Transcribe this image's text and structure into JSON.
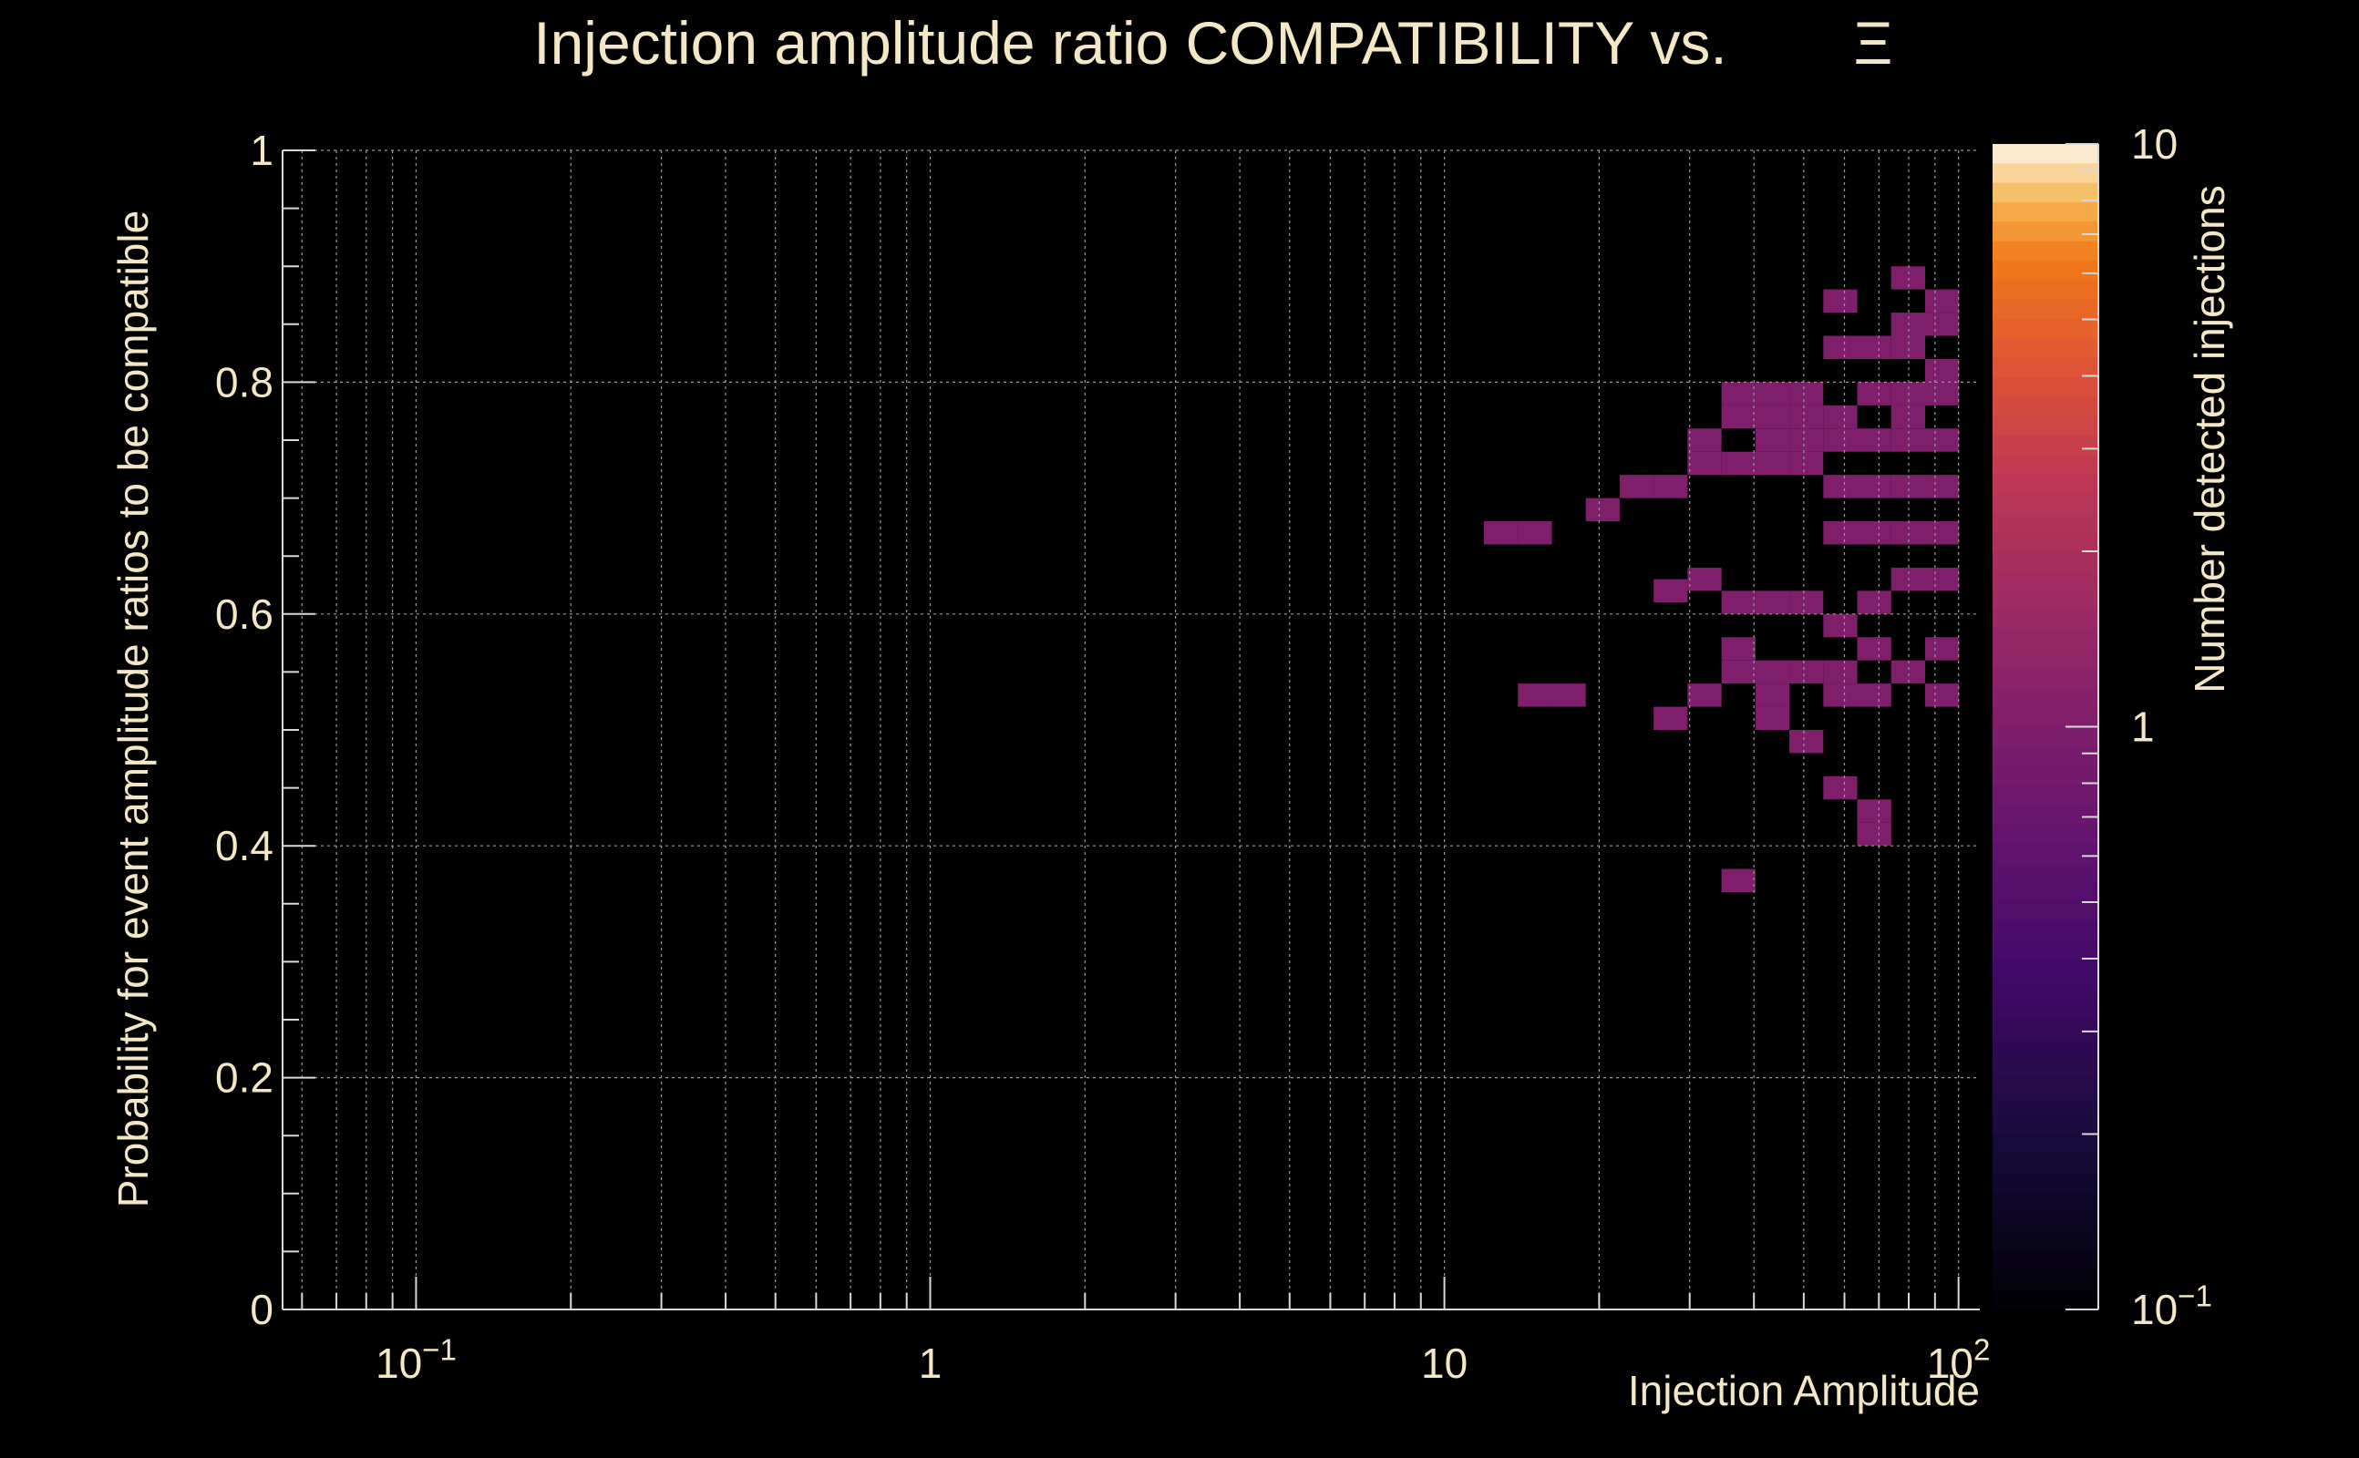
{
  "chart_data": {
    "type": "heatmap",
    "title": "Injection amplitude ratio COMPATIBILITY vs.",
    "title_symbol": "Ξ",
    "xlabel": "Injection Amplitude",
    "ylabel": "Probability for event amplitude ratios to be compatible",
    "zlabel": "Number detected injections",
    "x_scale": "log",
    "x_range": [
      0.055,
      110
    ],
    "y_range": [
      0,
      1
    ],
    "z_scale": "log",
    "z_range": [
      0.1,
      10
    ],
    "x_ticks": [
      {
        "value": 0.1,
        "mantissa": "10",
        "exponent": "−1"
      },
      {
        "value": 1,
        "mantissa": "1",
        "exponent": ""
      },
      {
        "value": 10,
        "mantissa": "10",
        "exponent": ""
      },
      {
        "value": 100,
        "mantissa": "10",
        "exponent": "2"
      }
    ],
    "y_ticks": [
      {
        "value": 0,
        "label": "0"
      },
      {
        "value": 0.2,
        "label": "0.2"
      },
      {
        "value": 0.4,
        "label": "0.4"
      },
      {
        "value": 0.6,
        "label": "0.6"
      },
      {
        "value": 0.8,
        "label": "0.8"
      },
      {
        "value": 1,
        "label": "1"
      }
    ],
    "z_ticks": [
      {
        "value": 10,
        "mantissa": "10",
        "exponent": ""
      },
      {
        "value": 1,
        "mantissa": "1",
        "exponent": ""
      },
      {
        "value": 0.1,
        "mantissa": "10",
        "exponent": "−1"
      }
    ],
    "grid": true,
    "bins": {
      "x_bins": 50,
      "y_bins": 50,
      "x_log_min": -1.26,
      "x_log_max": 2.04,
      "cells": [
        [
          1.11,
          0.67,
          1
        ],
        [
          1.176,
          0.67,
          1
        ],
        [
          1.176,
          0.53,
          1
        ],
        [
          1.242,
          0.53,
          1
        ],
        [
          1.308,
          0.69,
          1
        ],
        [
          1.374,
          0.71,
          1
        ],
        [
          1.44,
          0.71,
          1
        ],
        [
          1.44,
          0.62,
          1
        ],
        [
          1.44,
          0.51,
          1
        ],
        [
          1.506,
          0.75,
          1
        ],
        [
          1.506,
          0.73,
          1
        ],
        [
          1.506,
          0.63,
          1
        ],
        [
          1.506,
          0.53,
          1
        ],
        [
          1.572,
          0.79,
          1
        ],
        [
          1.572,
          0.77,
          1
        ],
        [
          1.572,
          0.73,
          1
        ],
        [
          1.572,
          0.61,
          1
        ],
        [
          1.572,
          0.57,
          1
        ],
        [
          1.572,
          0.55,
          1
        ],
        [
          1.572,
          0.37,
          1
        ],
        [
          1.638,
          0.79,
          1
        ],
        [
          1.638,
          0.77,
          1
        ],
        [
          1.638,
          0.75,
          1
        ],
        [
          1.638,
          0.73,
          1
        ],
        [
          1.638,
          0.61,
          1
        ],
        [
          1.638,
          0.55,
          1
        ],
        [
          1.638,
          0.53,
          1
        ],
        [
          1.638,
          0.51,
          1
        ],
        [
          1.704,
          0.79,
          1
        ],
        [
          1.704,
          0.77,
          1
        ],
        [
          1.704,
          0.75,
          1
        ],
        [
          1.704,
          0.73,
          1
        ],
        [
          1.704,
          0.61,
          1
        ],
        [
          1.704,
          0.55,
          1
        ],
        [
          1.704,
          0.49,
          1
        ],
        [
          1.77,
          0.87,
          1
        ],
        [
          1.77,
          0.83,
          1
        ],
        [
          1.77,
          0.77,
          1
        ],
        [
          1.77,
          0.75,
          1
        ],
        [
          1.77,
          0.71,
          1
        ],
        [
          1.77,
          0.67,
          1
        ],
        [
          1.77,
          0.59,
          1
        ],
        [
          1.77,
          0.55,
          1
        ],
        [
          1.77,
          0.53,
          1
        ],
        [
          1.77,
          0.45,
          1
        ],
        [
          1.836,
          0.83,
          1
        ],
        [
          1.836,
          0.79,
          1
        ],
        [
          1.836,
          0.75,
          1
        ],
        [
          1.836,
          0.71,
          1
        ],
        [
          1.836,
          0.67,
          1
        ],
        [
          1.836,
          0.61,
          1
        ],
        [
          1.836,
          0.57,
          1
        ],
        [
          1.836,
          0.53,
          1
        ],
        [
          1.836,
          0.43,
          1
        ],
        [
          1.836,
          0.41,
          1
        ],
        [
          1.902,
          0.89,
          1
        ],
        [
          1.902,
          0.85,
          1
        ],
        [
          1.902,
          0.83,
          1
        ],
        [
          1.902,
          0.79,
          1
        ],
        [
          1.902,
          0.77,
          1
        ],
        [
          1.902,
          0.75,
          1
        ],
        [
          1.902,
          0.71,
          1
        ],
        [
          1.902,
          0.67,
          1
        ],
        [
          1.902,
          0.63,
          1
        ],
        [
          1.902,
          0.55,
          1
        ],
        [
          1.968,
          0.87,
          1
        ],
        [
          1.968,
          0.85,
          1
        ],
        [
          1.968,
          0.81,
          1
        ],
        [
          1.968,
          0.79,
          1
        ],
        [
          1.968,
          0.75,
          1
        ],
        [
          1.968,
          0.71,
          1
        ],
        [
          1.968,
          0.67,
          1
        ],
        [
          1.968,
          0.63,
          1
        ],
        [
          1.968,
          0.57,
          1
        ],
        [
          1.968,
          0.53,
          1
        ]
      ]
    }
  }
}
